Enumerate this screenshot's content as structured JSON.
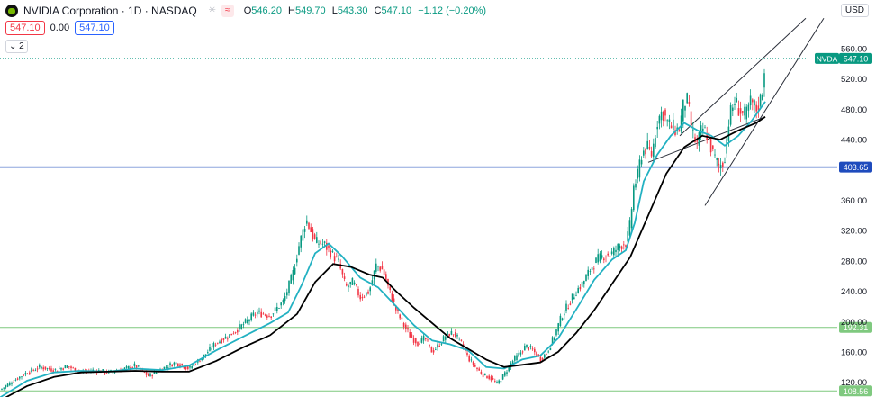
{
  "header": {
    "title": "NVIDIA Corporation · 1D · NASDAQ",
    "ohlc": [
      {
        "k": "O",
        "v": "546.20"
      },
      {
        "k": "H",
        "v": "549.70"
      },
      {
        "k": "L",
        "v": "543.30"
      },
      {
        "k": "C",
        "v": "547.10"
      },
      {
        "k": "",
        "v": "−1.12 (−0.20%)"
      }
    ],
    "bid": "547.10",
    "spread": "0.00",
    "ask": "547.10",
    "collapse_count": "2"
  },
  "currency": "USD",
  "colors": {
    "up": "#089981",
    "down": "#f23645",
    "ma_fast": "#22b1c2",
    "ma_slow": "#000000",
    "hline_blue": "#1e4bbd",
    "hline_green": "#7fc97f",
    "trend": "#2a2e39"
  },
  "chart_data": {
    "type": "candlestick",
    "symbol": "NVDA",
    "last_price": "547.10",
    "y_ticks": [
      "560.00",
      "520.00",
      "480.00",
      "440.00",
      "360.00",
      "320.00",
      "280.00",
      "240.00",
      "200.00",
      "160.00",
      "120.00"
    ],
    "ylim": [
      100,
      600
    ],
    "horizontal_lines": [
      {
        "value": 403.65,
        "label": "403.65",
        "color": "#1e4bbd"
      },
      {
        "value": 192.31,
        "label": "192.31",
        "color": "#7fc97f"
      },
      {
        "value": 108.56,
        "label": "108.56",
        "color": "#7fc97f"
      }
    ],
    "price_path": [
      [
        0,
        110
      ],
      [
        15,
        122
      ],
      [
        30,
        133
      ],
      [
        45,
        140
      ],
      [
        60,
        136
      ],
      [
        75,
        141
      ],
      [
        90,
        133
      ],
      [
        105,
        136
      ],
      [
        120,
        133
      ],
      [
        135,
        136
      ],
      [
        150,
        142
      ],
      [
        165,
        128
      ],
      [
        180,
        138
      ],
      [
        195,
        146
      ],
      [
        210,
        138
      ],
      [
        225,
        153
      ],
      [
        240,
        172
      ],
      [
        255,
        182
      ],
      [
        270,
        196
      ],
      [
        285,
        212
      ],
      [
        300,
        208
      ],
      [
        315,
        227
      ],
      [
        325,
        262
      ],
      [
        332,
        300
      ],
      [
        340,
        335
      ],
      [
        350,
        305
      ],
      [
        360,
        302
      ],
      [
        368,
        290
      ],
      [
        376,
        278
      ],
      [
        384,
        245
      ],
      [
        392,
        252
      ],
      [
        400,
        232
      ],
      [
        410,
        240
      ],
      [
        418,
        275
      ],
      [
        425,
        268
      ],
      [
        432,
        242
      ],
      [
        440,
        215
      ],
      [
        448,
        196
      ],
      [
        456,
        180
      ],
      [
        464,
        172
      ],
      [
        472,
        178
      ],
      [
        480,
        160
      ],
      [
        488,
        170
      ],
      [
        496,
        183
      ],
      [
        504,
        185
      ],
      [
        512,
        172
      ],
      [
        520,
        152
      ],
      [
        528,
        140
      ],
      [
        536,
        130
      ],
      [
        544,
        126
      ],
      [
        552,
        118
      ],
      [
        560,
        130
      ],
      [
        568,
        146
      ],
      [
        576,
        156
      ],
      [
        584,
        168
      ],
      [
        592,
        162
      ],
      [
        600,
        150
      ],
      [
        608,
        160
      ],
      [
        616,
        182
      ],
      [
        624,
        208
      ],
      [
        632,
        224
      ],
      [
        640,
        240
      ],
      [
        648,
        252
      ],
      [
        656,
        270
      ],
      [
        664,
        282
      ],
      [
        672,
        288
      ],
      [
        680,
        290
      ],
      [
        688,
        300
      ],
      [
        696,
        305
      ],
      [
        700,
        330
      ],
      [
        704,
        380
      ],
      [
        708,
        390
      ],
      [
        712,
        420
      ],
      [
        718,
        430
      ],
      [
        724,
        420
      ],
      [
        730,
        465
      ],
      [
        736,
        478
      ],
      [
        742,
        460
      ],
      [
        748,
        455
      ],
      [
        754,
        452
      ],
      [
        760,
        490
      ],
      [
        764,
        490
      ],
      [
        768,
        452
      ],
      [
        774,
        432
      ],
      [
        780,
        455
      ],
      [
        786,
        445
      ],
      [
        792,
        420
      ],
      [
        798,
        405
      ],
      [
        804,
        410
      ],
      [
        810,
        470
      ],
      [
        816,
        490
      ],
      [
        822,
        478
      ],
      [
        828,
        470
      ],
      [
        834,
        490
      ],
      [
        840,
        480
      ],
      [
        846,
        497
      ],
      [
        850,
        547
      ]
    ],
    "ma_fast": [
      [
        0,
        100
      ],
      [
        30,
        122
      ],
      [
        60,
        133
      ],
      [
        90,
        135
      ],
      [
        120,
        134
      ],
      [
        150,
        138
      ],
      [
        180,
        136
      ],
      [
        210,
        142
      ],
      [
        240,
        162
      ],
      [
        270,
        180
      ],
      [
        300,
        198
      ],
      [
        320,
        212
      ],
      [
        335,
        248
      ],
      [
        350,
        290
      ],
      [
        365,
        303
      ],
      [
        380,
        286
      ],
      [
        400,
        258
      ],
      [
        420,
        245
      ],
      [
        440,
        220
      ],
      [
        460,
        195
      ],
      [
        480,
        175
      ],
      [
        500,
        170
      ],
      [
        520,
        162
      ],
      [
        540,
        140
      ],
      [
        560,
        138
      ],
      [
        580,
        150
      ],
      [
        600,
        155
      ],
      [
        620,
        178
      ],
      [
        640,
        216
      ],
      [
        660,
        255
      ],
      [
        680,
        282
      ],
      [
        695,
        294
      ],
      [
        705,
        330
      ],
      [
        715,
        385
      ],
      [
        730,
        420
      ],
      [
        745,
        445
      ],
      [
        760,
        462
      ],
      [
        775,
        452
      ],
      [
        790,
        445
      ],
      [
        805,
        432
      ],
      [
        820,
        445
      ],
      [
        835,
        465
      ],
      [
        850,
        490
      ]
    ],
    "ma_slow": [
      [
        0,
        96
      ],
      [
        30,
        115
      ],
      [
        60,
        127
      ],
      [
        90,
        133
      ],
      [
        120,
        134
      ],
      [
        150,
        135
      ],
      [
        180,
        134
      ],
      [
        210,
        134
      ],
      [
        240,
        148
      ],
      [
        270,
        166
      ],
      [
        300,
        182
      ],
      [
        330,
        210
      ],
      [
        350,
        252
      ],
      [
        370,
        276
      ],
      [
        390,
        272
      ],
      [
        410,
        262
      ],
      [
        425,
        258
      ],
      [
        440,
        240
      ],
      [
        460,
        218
      ],
      [
        480,
        198
      ],
      [
        500,
        178
      ],
      [
        520,
        164
      ],
      [
        540,
        150
      ],
      [
        560,
        140
      ],
      [
        580,
        143
      ],
      [
        600,
        146
      ],
      [
        620,
        160
      ],
      [
        640,
        185
      ],
      [
        660,
        215
      ],
      [
        680,
        250
      ],
      [
        700,
        285
      ],
      [
        720,
        340
      ],
      [
        740,
        395
      ],
      [
        760,
        430
      ],
      [
        780,
        445
      ],
      [
        800,
        440
      ],
      [
        820,
        452
      ],
      [
        840,
        462
      ],
      [
        850,
        470
      ]
    ],
    "trend_lines": [
      {
        "from": [
          755,
          445
        ],
        "to": [
          895,
          600
        ]
      },
      {
        "from": [
          783,
          353
        ],
        "to": [
          915,
          600
        ]
      },
      {
        "from": [
          720,
          410
        ],
        "to": [
          850,
          470
        ]
      }
    ]
  }
}
